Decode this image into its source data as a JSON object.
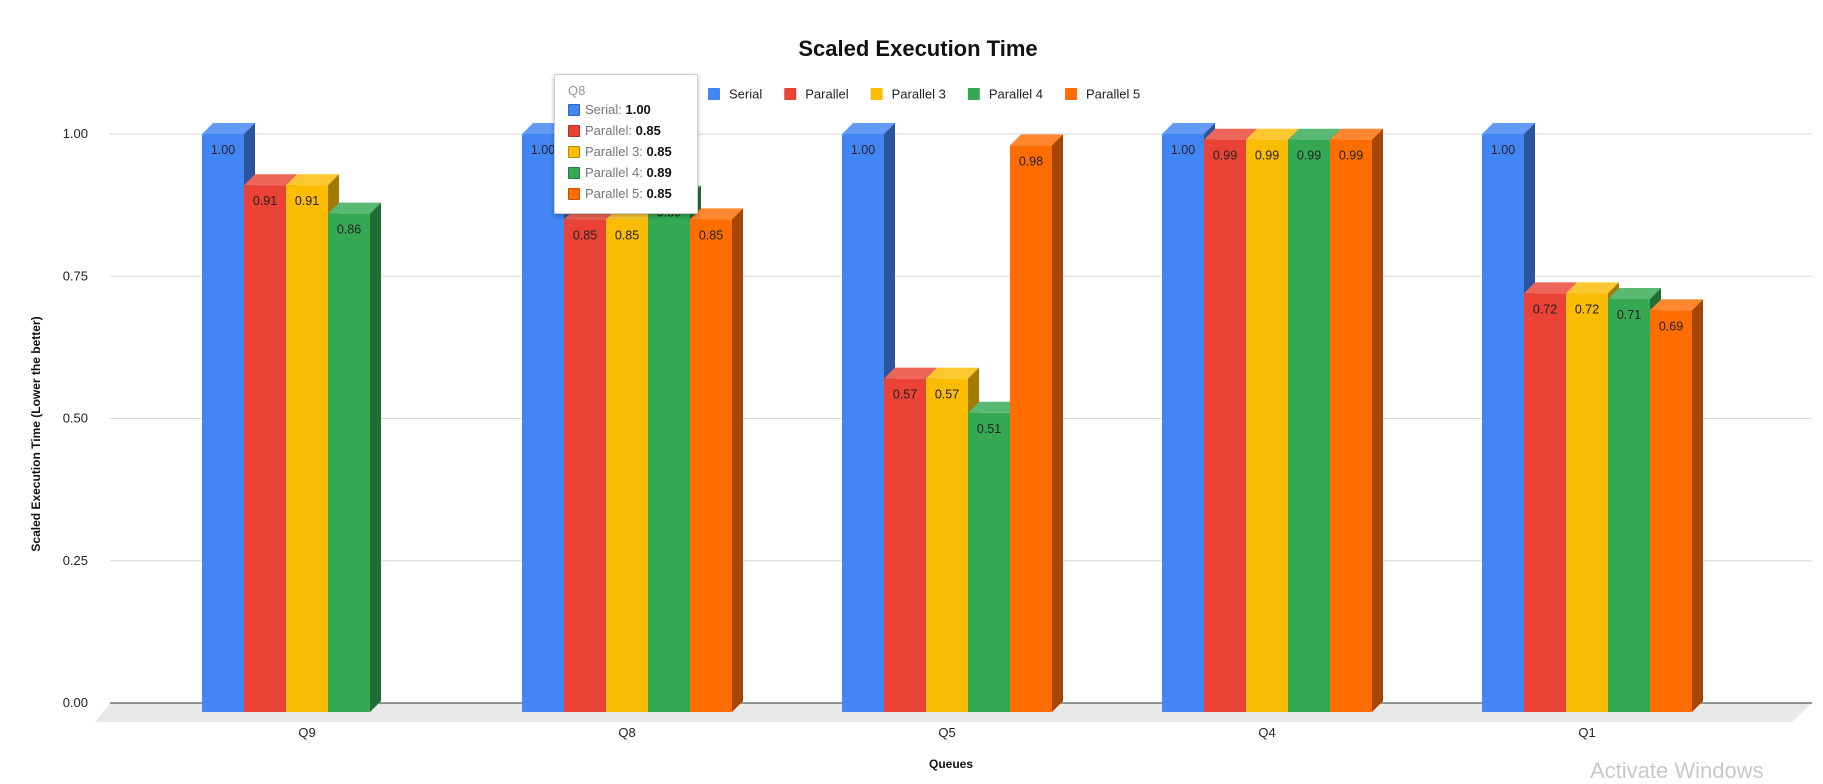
{
  "chart_data": {
    "type": "bar",
    "title": "Scaled Execution Time",
    "xlabel": "Queues",
    "ylabel": "Scaled Execution Time (Lower the better)",
    "categories": [
      "Q9",
      "Q8",
      "Q5",
      "Q4",
      "Q1"
    ],
    "ylim": [
      0,
      1
    ],
    "yticks": [
      "0.00",
      "0.25",
      "0.50",
      "0.75",
      "1.00"
    ],
    "grid": true,
    "legend_position": "top",
    "series": [
      {
        "name": "Serial",
        "color": "#4285f4",
        "values": [
          1.0,
          1.0,
          1.0,
          1.0,
          1.0
        ],
        "labels": [
          "1.00",
          "1.00",
          "1.00",
          "1.00",
          "1.00"
        ]
      },
      {
        "name": "Parallel",
        "color": "#ea4335",
        "values": [
          0.91,
          0.85,
          0.57,
          0.99,
          0.72
        ],
        "labels": [
          "0.91",
          "0.85",
          "0.57",
          "0.99",
          "0.72"
        ]
      },
      {
        "name": "Parallel 3",
        "color": "#fbbc04",
        "values": [
          0.91,
          0.85,
          0.57,
          0.99,
          0.72
        ],
        "labels": [
          "0.91",
          "0.85",
          "0.57",
          "0.99",
          "0.72"
        ]
      },
      {
        "name": "Parallel 4",
        "color": "#34a853",
        "values": [
          0.86,
          0.89,
          0.51,
          0.99,
          0.71
        ],
        "labels": [
          "0.86",
          "0.89",
          "0.51",
          "0.99",
          "0.71"
        ]
      },
      {
        "name": "Parallel 5",
        "color": "#ff6d01",
        "values": [
          null,
          0.85,
          0.98,
          0.99,
          0.69
        ],
        "labels": [
          null,
          "0.85",
          "0.98",
          "0.99",
          "0.69"
        ]
      }
    ]
  },
  "tooltip": {
    "category": "Q8",
    "rows": [
      {
        "name": "Serial",
        "value": "1.00",
        "color": "#4285f4"
      },
      {
        "name": "Parallel",
        "value": "0.85",
        "color": "#ea4335"
      },
      {
        "name": "Parallel 3",
        "value": "0.85",
        "color": "#fbbc04"
      },
      {
        "name": "Parallel 4",
        "value": "0.89",
        "color": "#34a853"
      },
      {
        "name": "Parallel 5",
        "value": "0.85",
        "color": "#ff6d01"
      }
    ]
  },
  "watermark": "Activate Windows"
}
